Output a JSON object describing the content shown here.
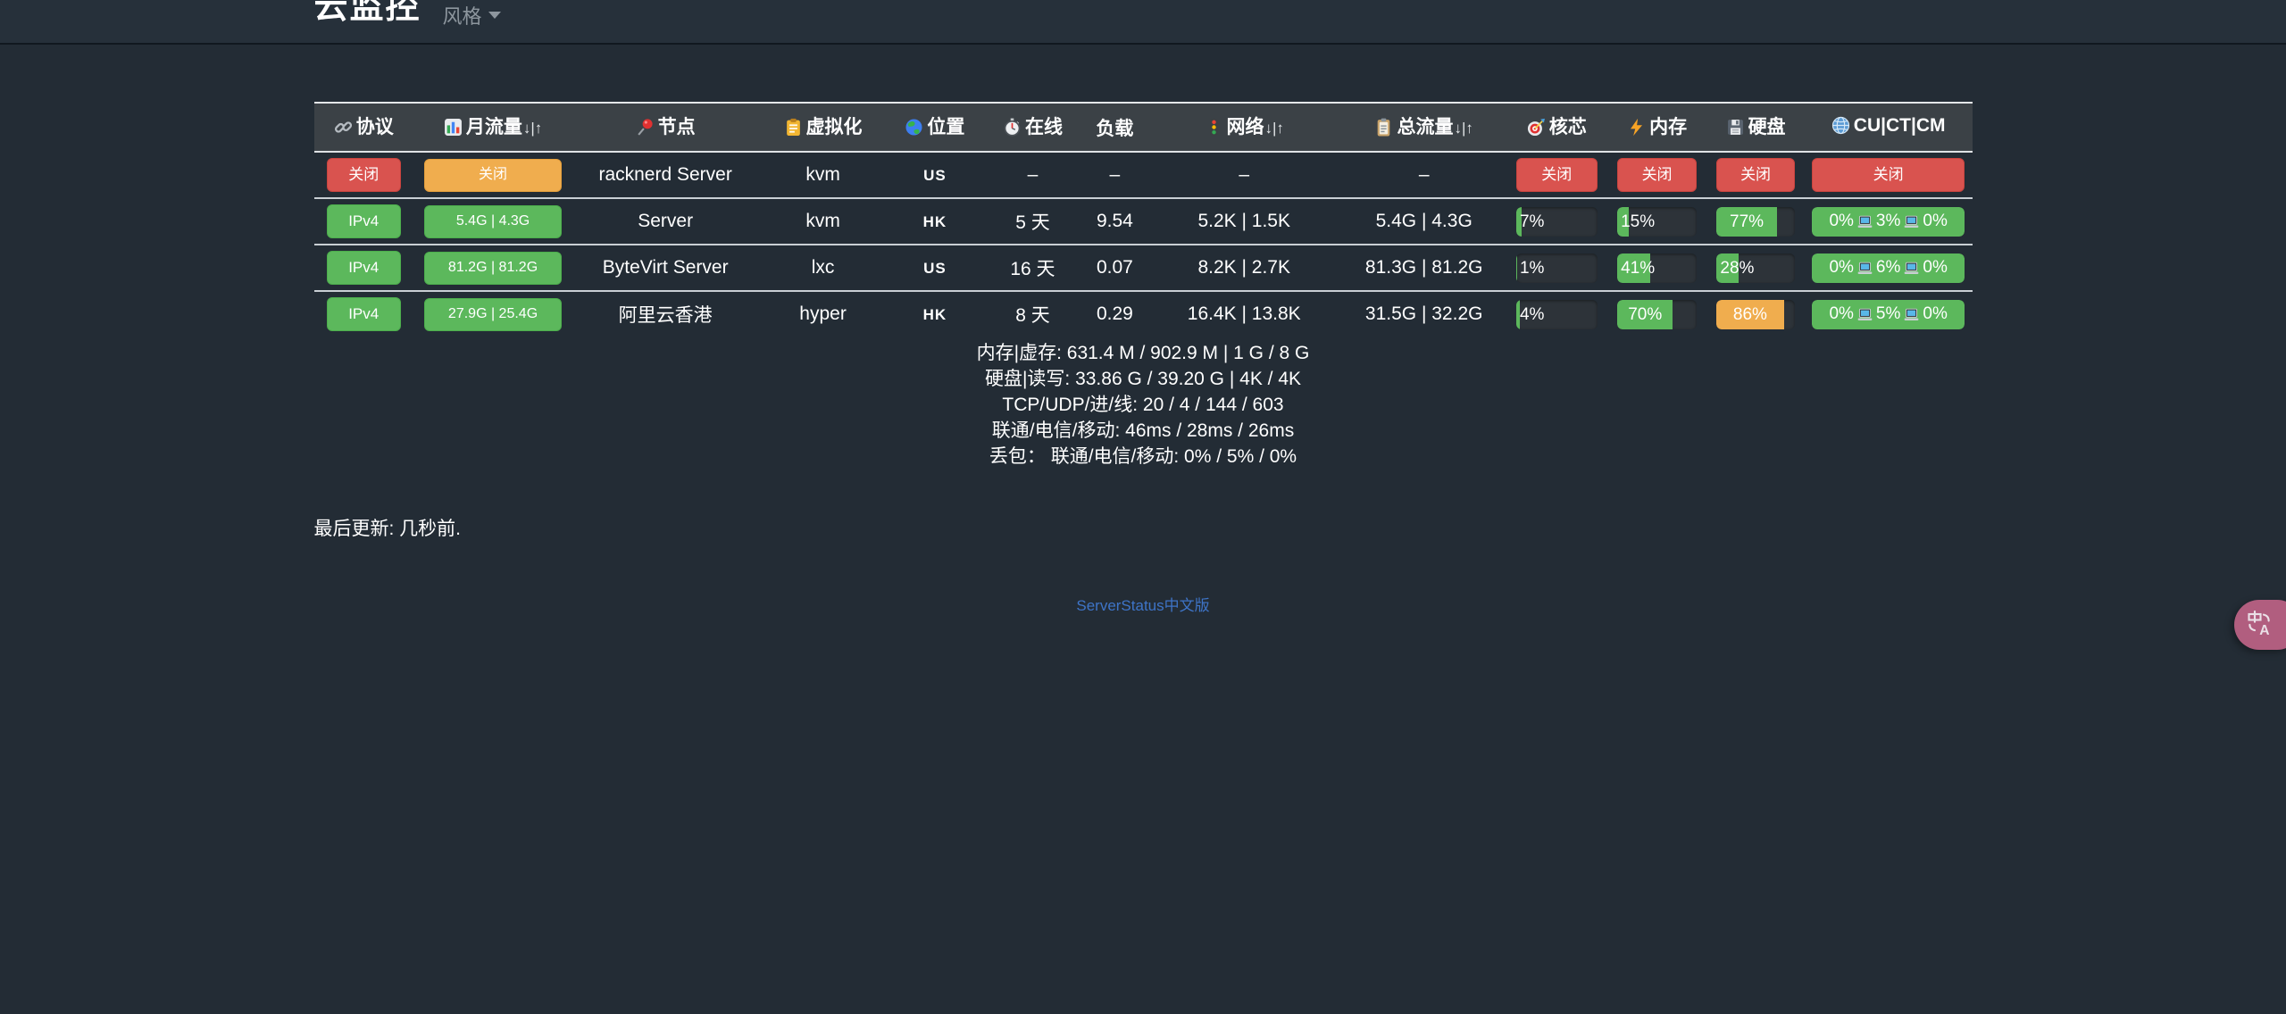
{
  "navbar": {
    "title": "云监控",
    "style_menu_label": "风格"
  },
  "table": {
    "columns": [
      {
        "key": "protocol",
        "label": "协议",
        "icon": "link-icon"
      },
      {
        "key": "monthly",
        "label": "月流量",
        "icon": "bar-chart-icon",
        "sort": "↓|↑"
      },
      {
        "key": "node",
        "label": "节点",
        "icon": "pushpin-icon"
      },
      {
        "key": "virt",
        "label": "虚拟化",
        "icon": "clipboard-icon"
      },
      {
        "key": "location",
        "label": "位置",
        "icon": "globe-icon"
      },
      {
        "key": "online",
        "label": "在线",
        "icon": "stopwatch-icon"
      },
      {
        "key": "load",
        "label": "负载",
        "icon": null
      },
      {
        "key": "network",
        "label": "网络",
        "icon": "traffic-light-icon",
        "sort": "↓|↑"
      },
      {
        "key": "total",
        "label": "总流量",
        "icon": "clipboard-lines-icon",
        "sort": "↓|↑"
      },
      {
        "key": "core",
        "label": "核芯",
        "icon": "dart-icon"
      },
      {
        "key": "memory",
        "label": "内存",
        "icon": "lightning-icon"
      },
      {
        "key": "disk",
        "label": "硬盘",
        "icon": "floppy-icon"
      },
      {
        "key": "cucm",
        "label": "CU|CT|CM",
        "icon": "globe-meridians-icon"
      }
    ],
    "rows": [
      {
        "protocol": {
          "badge": "关闭",
          "color": "red"
        },
        "monthly": {
          "badge": "关闭",
          "color": "orange"
        },
        "node": "racknerd Server",
        "virt": "kvm",
        "location": "US",
        "online": "–",
        "load": "–",
        "network": "–",
        "total": "–",
        "core": {
          "badge": "关闭",
          "color": "red"
        },
        "memory": {
          "badge": "关闭",
          "color": "red"
        },
        "disk": {
          "badge": "关闭",
          "color": "red"
        },
        "cucm": {
          "badge": "关闭",
          "color": "red"
        }
      },
      {
        "protocol": {
          "badge": "IPv4",
          "color": "green"
        },
        "monthly": {
          "badge": "5.4G | 4.3G",
          "color": "green"
        },
        "node": "Server",
        "virt": "kvm",
        "location": "HK",
        "online": "5 天",
        "load": "9.54",
        "network": "5.2K | 1.5K",
        "total": "5.4G | 4.3G",
        "core": {
          "bar": 7,
          "label": "7%",
          "color": "green"
        },
        "memory": {
          "bar": 15,
          "label": "15%",
          "color": "green"
        },
        "disk": {
          "bar": 77,
          "label": "77%",
          "color": "green"
        },
        "cucm": {
          "bar": 100,
          "color": "green",
          "segments": [
            "0%",
            "3%",
            "0%"
          ]
        }
      },
      {
        "protocol": {
          "badge": "IPv4",
          "color": "green"
        },
        "monthly": {
          "badge": "81.2G | 81.2G",
          "color": "green"
        },
        "node": "ByteVirt Server",
        "virt": "lxc",
        "location": "US",
        "online": "16 天",
        "load": "0.07",
        "network": "8.2K | 2.7K",
        "total": "81.3G | 81.2G",
        "core": {
          "bar": 1,
          "label": "1%",
          "color": "green"
        },
        "memory": {
          "bar": 41,
          "label": "41%",
          "color": "green"
        },
        "disk": {
          "bar": 28,
          "label": "28%",
          "color": "green"
        },
        "cucm": {
          "bar": 100,
          "color": "green",
          "segments": [
            "0%",
            "6%",
            "0%"
          ]
        }
      },
      {
        "protocol": {
          "badge": "IPv4",
          "color": "green"
        },
        "monthly": {
          "badge": "27.9G | 25.4G",
          "color": "green"
        },
        "node": "阿里云香港",
        "virt": "hyper",
        "location": "HK",
        "online": "8 天",
        "load": "0.29",
        "network": "16.4K | 13.8K",
        "total": "31.5G | 32.2G",
        "core": {
          "bar": 4,
          "label": "4%",
          "color": "green"
        },
        "memory": {
          "bar": 70,
          "label": "70%",
          "color": "green"
        },
        "disk": {
          "bar": 86,
          "label": "86%",
          "color": "orange"
        },
        "cucm": {
          "bar": 100,
          "color": "green",
          "segments": [
            "0%",
            "5%",
            "0%"
          ]
        }
      }
    ]
  },
  "detail_panel": {
    "lines": [
      "内存|虚存: 631.4 M / 902.9 M | 1 G / 8 G",
      "硬盘|读写: 33.86 G / 39.20 G | 4K / 4K",
      "TCP/UDP/进/线: 20 / 4 / 144 / 603",
      "联通/电信/移动: 46ms / 28ms / 26ms",
      "丢包： 联通/电信/移动: 0% / 5% / 0%"
    ]
  },
  "last_update": "最后更新: 几秒前.",
  "footer": {
    "link_label": "ServerStatus中文版"
  },
  "fab": {
    "icon": "translate-icon"
  },
  "colors": {
    "background": "#232c35",
    "header_bg": "#3b4146",
    "status_red": "#d9534f",
    "status_orange": "#f0ad4e",
    "status_green": "#5cb85c",
    "link_blue": "#3e74c7",
    "fab_pink": "#b15e7f"
  }
}
